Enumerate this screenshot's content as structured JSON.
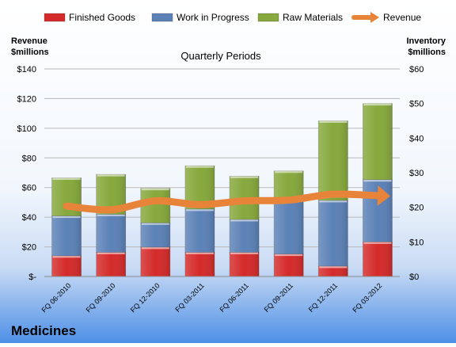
{
  "chart_data": {
    "type": "bar",
    "subtitle": "Quarterly Periods",
    "title": "Medicines",
    "left_axis_label": [
      "Revenue",
      "$millions"
    ],
    "right_axis_label": [
      "Inventory",
      "$millions"
    ],
    "categories": [
      "FQ 06-2010",
      "FQ 09-2010",
      "FQ 12-2010",
      "FQ 03-2011",
      "FQ 06-2011",
      "FQ 09-2011",
      "FQ 12-2011",
      "FQ 03-2012"
    ],
    "left_ticks": [
      "$-",
      "$20",
      "$40",
      "$60",
      "$80",
      "$100",
      "$120",
      "$140"
    ],
    "right_ticks": [
      "$0",
      "$10",
      "$20",
      "$30",
      "$40",
      "$50",
      "$60"
    ],
    "left_ylim": [
      0,
      140
    ],
    "right_ylim": [
      0,
      60
    ],
    "stack_axis": "right",
    "legend_position": "top",
    "series": [
      {
        "name": "Finished Goods",
        "kind": "stacked-bar",
        "axis": "right",
        "color": "#d42a2a",
        "values": [
          6,
          7,
          8.5,
          7,
          7,
          6.5,
          3,
          10
        ]
      },
      {
        "name": "Work in Progress",
        "kind": "stacked-bar",
        "axis": "right",
        "color": "#5b81b7",
        "values": [
          11.5,
          11,
          7,
          12.5,
          9.5,
          16,
          19,
          18
        ]
      },
      {
        "name": "Raw Materials",
        "kind": "stacked-bar",
        "axis": "right",
        "color": "#86a83c",
        "values": [
          11,
          11.5,
          10,
          12.5,
          12.5,
          8,
          23,
          22
        ]
      },
      {
        "name": "Revenue",
        "kind": "line-arrow",
        "axis": "left",
        "color": "#e8843a",
        "values": [
          47.5,
          45,
          51,
          48.5,
          51,
          51.5,
          55.5,
          54.5
        ]
      }
    ]
  }
}
